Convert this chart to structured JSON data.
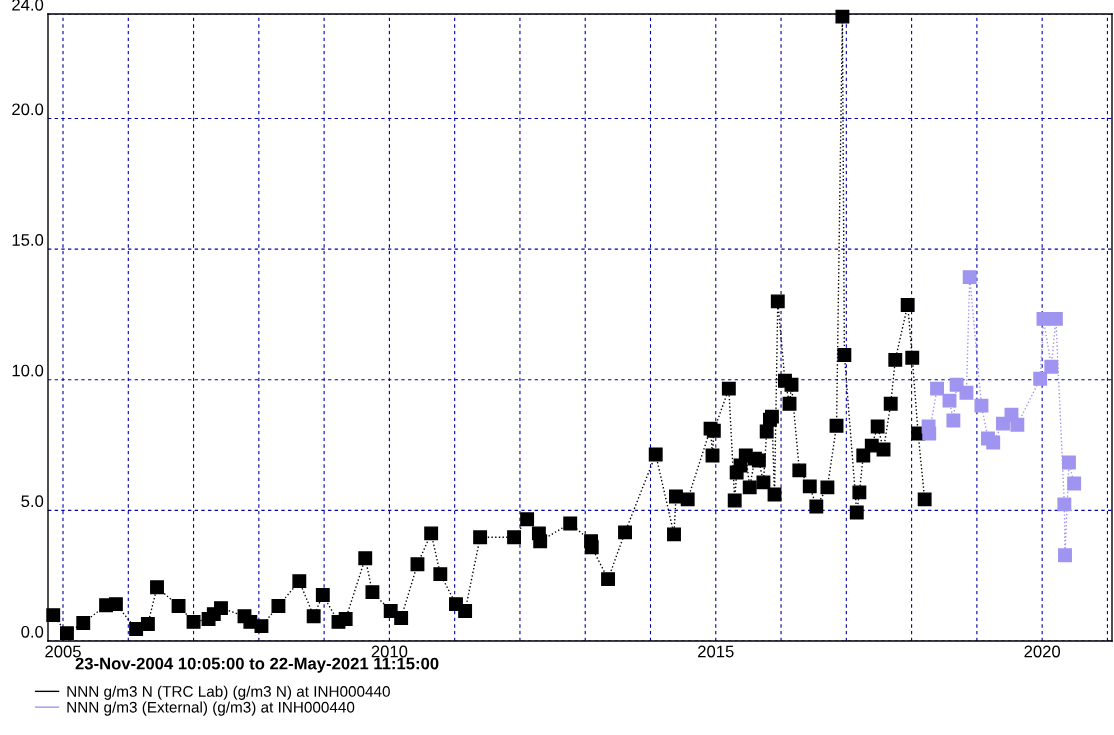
{
  "chart_data": {
    "type": "line",
    "marker": "square",
    "line_style": "dotted",
    "grid": true,
    "legend": "bottom",
    "annotations": [
      "23-Nov-2004 10:05:00 to 22-May-2021 11:15:00"
    ],
    "xlim": [
      2004.77,
      2021.07
    ],
    "xticks": [
      {
        "value": 2005,
        "label": "2005"
      },
      {
        "value": 2006,
        "label": null
      },
      {
        "value": 2007,
        "label": null
      },
      {
        "value": 2008,
        "label": null
      },
      {
        "value": 2009,
        "label": null
      },
      {
        "value": 2010,
        "label": "2010"
      },
      {
        "value": 2011,
        "label": null
      },
      {
        "value": 2012,
        "label": null
      },
      {
        "value": 2013,
        "label": null
      },
      {
        "value": 2014,
        "label": null
      },
      {
        "value": 2015,
        "label": "2015"
      },
      {
        "value": 2016,
        "label": null
      },
      {
        "value": 2017,
        "label": null
      },
      {
        "value": 2018,
        "label": null
      },
      {
        "value": 2019,
        "label": null
      },
      {
        "value": 2020,
        "label": "2020"
      },
      {
        "value": 2021,
        "label": null
      }
    ],
    "ylim": [
      0,
      24
    ],
    "yticks": [
      {
        "value": 0,
        "label": "0.0"
      },
      {
        "value": 5,
        "label": "5.0"
      },
      {
        "value": 10,
        "label": "10.0"
      },
      {
        "value": 15,
        "label": "15.0"
      },
      {
        "value": 20,
        "label": "20.0"
      },
      {
        "value": 24,
        "label": "24.0"
      }
    ],
    "series": [
      {
        "name": "NNN g/m3 N (TRC Lab) (g/m3 N) at INH000440",
        "color": "#000000",
        "x": [
          2004.85,
          2005.06,
          2005.31,
          2005.66,
          2005.81,
          2006.12,
          2006.3,
          2006.44,
          2006.77,
          2007.0,
          2007.23,
          2007.31,
          2007.42,
          2007.78,
          2007.87,
          2008.04,
          2008.3,
          2008.62,
          2008.84,
          2008.98,
          2009.22,
          2009.33,
          2009.63,
          2009.74,
          2010.02,
          2010.18,
          2010.43,
          2010.64,
          2010.78,
          2011.02,
          2011.16,
          2011.39,
          2011.91,
          2012.11,
          2012.29,
          2012.31,
          2012.77,
          2013.09,
          2013.1,
          2013.35,
          2013.61,
          2014.08,
          2014.36,
          2014.39,
          2014.57,
          2014.92,
          2014.95,
          2014.97,
          2015.2,
          2015.29,
          2015.32,
          2015.38,
          2015.46,
          2015.52,
          2015.6,
          2015.66,
          2015.73,
          2015.78,
          2015.83,
          2015.86,
          2015.9,
          2015.95,
          2016.06,
          2016.13,
          2016.16,
          2016.28,
          2016.44,
          2016.54,
          2016.71,
          2016.85,
          2016.94,
          2016.97,
          2017.16,
          2017.2,
          2017.26,
          2017.39,
          2017.48,
          2017.57,
          2017.68,
          2017.75,
          2017.94,
          2018.01,
          2018.1,
          2018.2
        ],
        "values": [
          0.99,
          0.3,
          0.69,
          1.37,
          1.41,
          0.46,
          0.65,
          2.06,
          1.34,
          0.73,
          0.84,
          1.03,
          1.26,
          0.95,
          0.73,
          0.57,
          1.34,
          2.29,
          0.95,
          1.76,
          0.73,
          0.84,
          3.17,
          1.87,
          1.15,
          0.88,
          2.94,
          4.12,
          2.56,
          1.41,
          1.15,
          3.97,
          3.97,
          4.66,
          4.12,
          3.82,
          4.5,
          3.82,
          3.59,
          2.37,
          4.16,
          7.14,
          4.08,
          5.53,
          5.42,
          8.13,
          7.1,
          8.05,
          9.66,
          5.38,
          6.45,
          6.72,
          7.1,
          5.88,
          6.98,
          6.91,
          6.07,
          8.02,
          8.47,
          8.59,
          5.61,
          13.0,
          9.96,
          9.08,
          9.81,
          6.53,
          5.92,
          5.15,
          5.88,
          8.24,
          23.9,
          10.95,
          4.92,
          5.69,
          7.1,
          7.48,
          8.21,
          7.33,
          9.08,
          10.76,
          12.86,
          10.84,
          7.94,
          5.42
        ]
      },
      {
        "name": "NNN g/m3 (External) (g/m3) at INH000440",
        "color": "#9f94f0",
        "x": [
          2018.26,
          2018.27,
          2018.39,
          2018.58,
          2018.64,
          2018.69,
          2018.84,
          2018.89,
          2019.07,
          2019.17,
          2019.25,
          2019.4,
          2019.53,
          2019.62,
          2019.97,
          2020.02,
          2020.14,
          2020.21,
          2020.34,
          2020.35,
          2020.41,
          2020.49
        ],
        "values": [
          8.21,
          7.94,
          9.66,
          9.2,
          8.44,
          9.81,
          9.5,
          13.93,
          9.01,
          7.75,
          7.6,
          8.32,
          8.66,
          8.28,
          10.04,
          12.33,
          10.5,
          12.33,
          5.23,
          3.28,
          6.83,
          6.03
        ]
      }
    ]
  }
}
